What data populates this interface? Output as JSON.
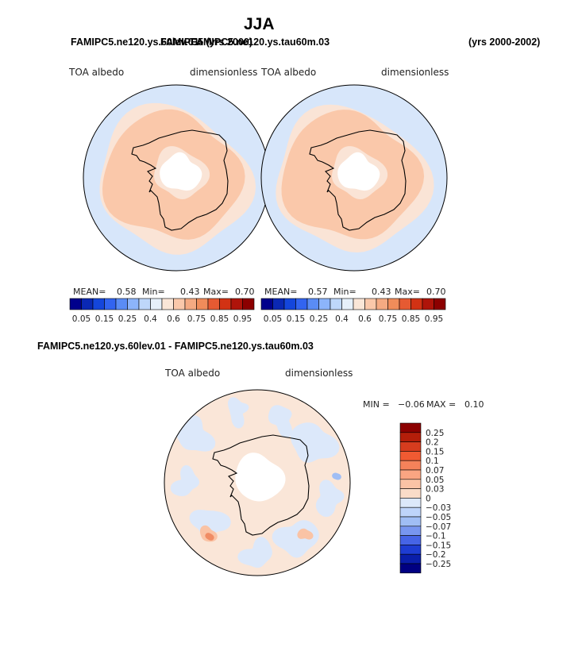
{
  "figure": {
    "title": "JJA",
    "header_left": "FAMIPC5.ne120.ys.60lev.01",
    "header_left_overprint": "FAMIPC5 (yrs 2000)",
    "header_mid": "FAMIPC5.ne120.ys.tau60m.03",
    "header_right": "(yrs 2000-2002)",
    "diff_title": "FAMIPC5.ne120.ys.60lev.01 - FAMIPC5.ne120.ys.tau60m.03"
  },
  "panels": [
    {
      "variable": "TOA albedo",
      "units": "dimensionless",
      "mean_label": "MEAN=",
      "mean": "0.58",
      "min_label": "Min=",
      "min": "0.43",
      "max_label": "Max=",
      "max": "0.70"
    },
    {
      "variable": "TOA albedo",
      "units": "dimensionless",
      "mean_label": "MEAN=",
      "mean": "0.57",
      "min_label": "Min=",
      "min": "0.43",
      "max_label": "Max=",
      "max": "0.70"
    },
    {
      "variable": "TOA albedo",
      "units": "dimensionless",
      "min_label": "MIN =",
      "min": "−0.06",
      "max_label": "MAX =",
      "max": "0.10"
    }
  ],
  "colorbars": {
    "abs_labels": [
      "0.05",
      "0.15",
      "0.25",
      "0.4",
      "0.6",
      "0.75",
      "0.85",
      "0.95"
    ],
    "abs_colors": [
      "#00008c",
      "#0a28b4",
      "#1446dc",
      "#3264f0",
      "#5a8cf5",
      "#8cb4fa",
      "#bed7fa",
      "#e6f0fa",
      "#fae6d7",
      "#fac8aa",
      "#f5aa82",
      "#f08c5a",
      "#e65a32",
      "#d23214",
      "#af140a",
      "#8c0000"
    ],
    "diff_labels": [
      "0.25",
      "0.2",
      "0.15",
      "0.1",
      "0.07",
      "0.05",
      "0.03",
      "0",
      "−0.03",
      "−0.05",
      "−0.07",
      "−0.1",
      "−0.15",
      "−0.2",
      "−0.25"
    ],
    "diff_colors": [
      "#8c0000",
      "#b41e0a",
      "#d73c1e",
      "#f05a32",
      "#f5825a",
      "#faa582",
      "#fac3a5",
      "#fadcc8",
      "#dce8fa",
      "#bed4fa",
      "#a0bef5",
      "#7896f0",
      "#4664e6",
      "#1e3cd2",
      "#0a1eaa",
      "#000082"
    ]
  },
  "chart_data": [
    {
      "type": "heatmap",
      "title": "TOA albedo",
      "units": "dimensionless",
      "projection": "south polar stereographic",
      "season": "JJA",
      "case": "FAMIPC5.ne120.ys.60lev.01",
      "years": "2000",
      "mean": 0.58,
      "min": 0.43,
      "max": 0.7,
      "levels": [
        0.05,
        0.1,
        0.15,
        0.2,
        0.25,
        0.3,
        0.4,
        0.5,
        0.6,
        0.7,
        0.75,
        0.8,
        0.85,
        0.9,
        0.95
      ]
    },
    {
      "type": "heatmap",
      "title": "TOA albedo",
      "units": "dimensionless",
      "projection": "south polar stereographic",
      "season": "JJA",
      "case": "FAMIPC5.ne120.ys.tau60m.03",
      "years": "2000-2002",
      "mean": 0.57,
      "min": 0.43,
      "max": 0.7,
      "levels": [
        0.05,
        0.1,
        0.15,
        0.2,
        0.25,
        0.3,
        0.4,
        0.5,
        0.6,
        0.7,
        0.75,
        0.8,
        0.85,
        0.9,
        0.95
      ]
    },
    {
      "type": "heatmap",
      "title": "TOA albedo",
      "units": "dimensionless",
      "projection": "south polar stereographic",
      "season": "JJA",
      "case": "FAMIPC5.ne120.ys.60lev.01 - FAMIPC5.ne120.ys.tau60m.03",
      "min": -0.06,
      "max": 0.1,
      "levels": [
        -0.25,
        -0.2,
        -0.15,
        -0.1,
        -0.07,
        -0.05,
        -0.03,
        0,
        0.03,
        0.05,
        0.07,
        0.1,
        0.15,
        0.2,
        0.25
      ]
    }
  ]
}
